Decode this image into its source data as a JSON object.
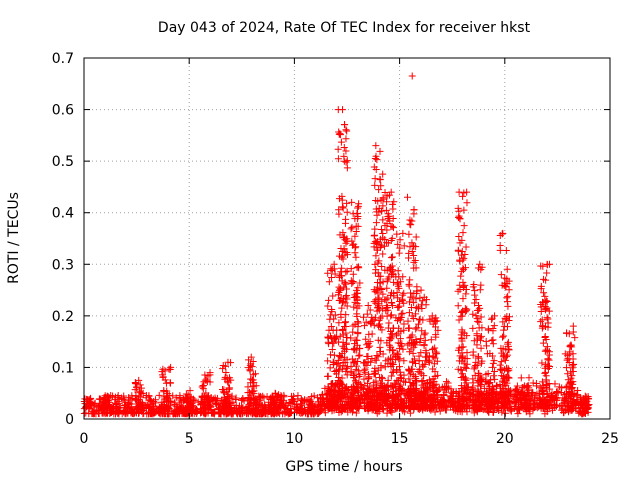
{
  "chart_data": {
    "type": "scatter",
    "title": "Day 043 of 2024, Rate Of TEC Index for receiver hkst",
    "xlabel": "GPS time / hours",
    "ylabel": "ROTI / TECUs",
    "xlim": [
      0,
      25
    ],
    "ylim": [
      0,
      0.7
    ],
    "xticks": [
      "0",
      "5",
      "10",
      "15",
      "20",
      "25"
    ],
    "yticks": [
      "0",
      "0.1",
      "0.2",
      "0.3",
      "0.4",
      "0.5",
      "0.6",
      "0.7"
    ],
    "grid": true,
    "legend": "none",
    "marker": "+",
    "color": "#ff0000",
    "baseline": {
      "x_range": [
        0,
        24
      ],
      "typical_range": [
        0.01,
        0.04
      ]
    },
    "spike_clusters": [
      {
        "x": 0.1,
        "max": 0.04
      },
      {
        "x": 1.0,
        "max": 0.045
      },
      {
        "x": 2.6,
        "max": 0.075
      },
      {
        "x": 3.9,
        "max": 0.1
      },
      {
        "x": 4.9,
        "max": 0.055
      },
      {
        "x": 5.8,
        "max": 0.09
      },
      {
        "x": 6.8,
        "max": 0.11
      },
      {
        "x": 8.0,
        "max": 0.12
      },
      {
        "x": 9.2,
        "max": 0.05
      },
      {
        "x": 11.8,
        "max": 0.3
      },
      {
        "x": 12.3,
        "max": 0.6
      },
      {
        "x": 12.9,
        "max": 0.42
      },
      {
        "x": 13.5,
        "max": 0.22
      },
      {
        "x": 14.0,
        "max": 0.53
      },
      {
        "x": 14.5,
        "max": 0.44
      },
      {
        "x": 15.0,
        "max": 0.36
      },
      {
        "x": 15.6,
        "max": 0.43
      },
      {
        "x": 16.1,
        "max": 0.25
      },
      {
        "x": 16.6,
        "max": 0.2
      },
      {
        "x": 18.0,
        "max": 0.44
      },
      {
        "x": 18.7,
        "max": 0.3
      },
      {
        "x": 19.3,
        "max": 0.2
      },
      {
        "x": 20.0,
        "max": 0.36
      },
      {
        "x": 21.0,
        "max": 0.08
      },
      {
        "x": 21.9,
        "max": 0.3
      },
      {
        "x": 23.1,
        "max": 0.18
      },
      {
        "x": 23.8,
        "max": 0.04
      }
    ],
    "outliers": [
      {
        "x": 15.6,
        "y": 0.665
      }
    ]
  }
}
